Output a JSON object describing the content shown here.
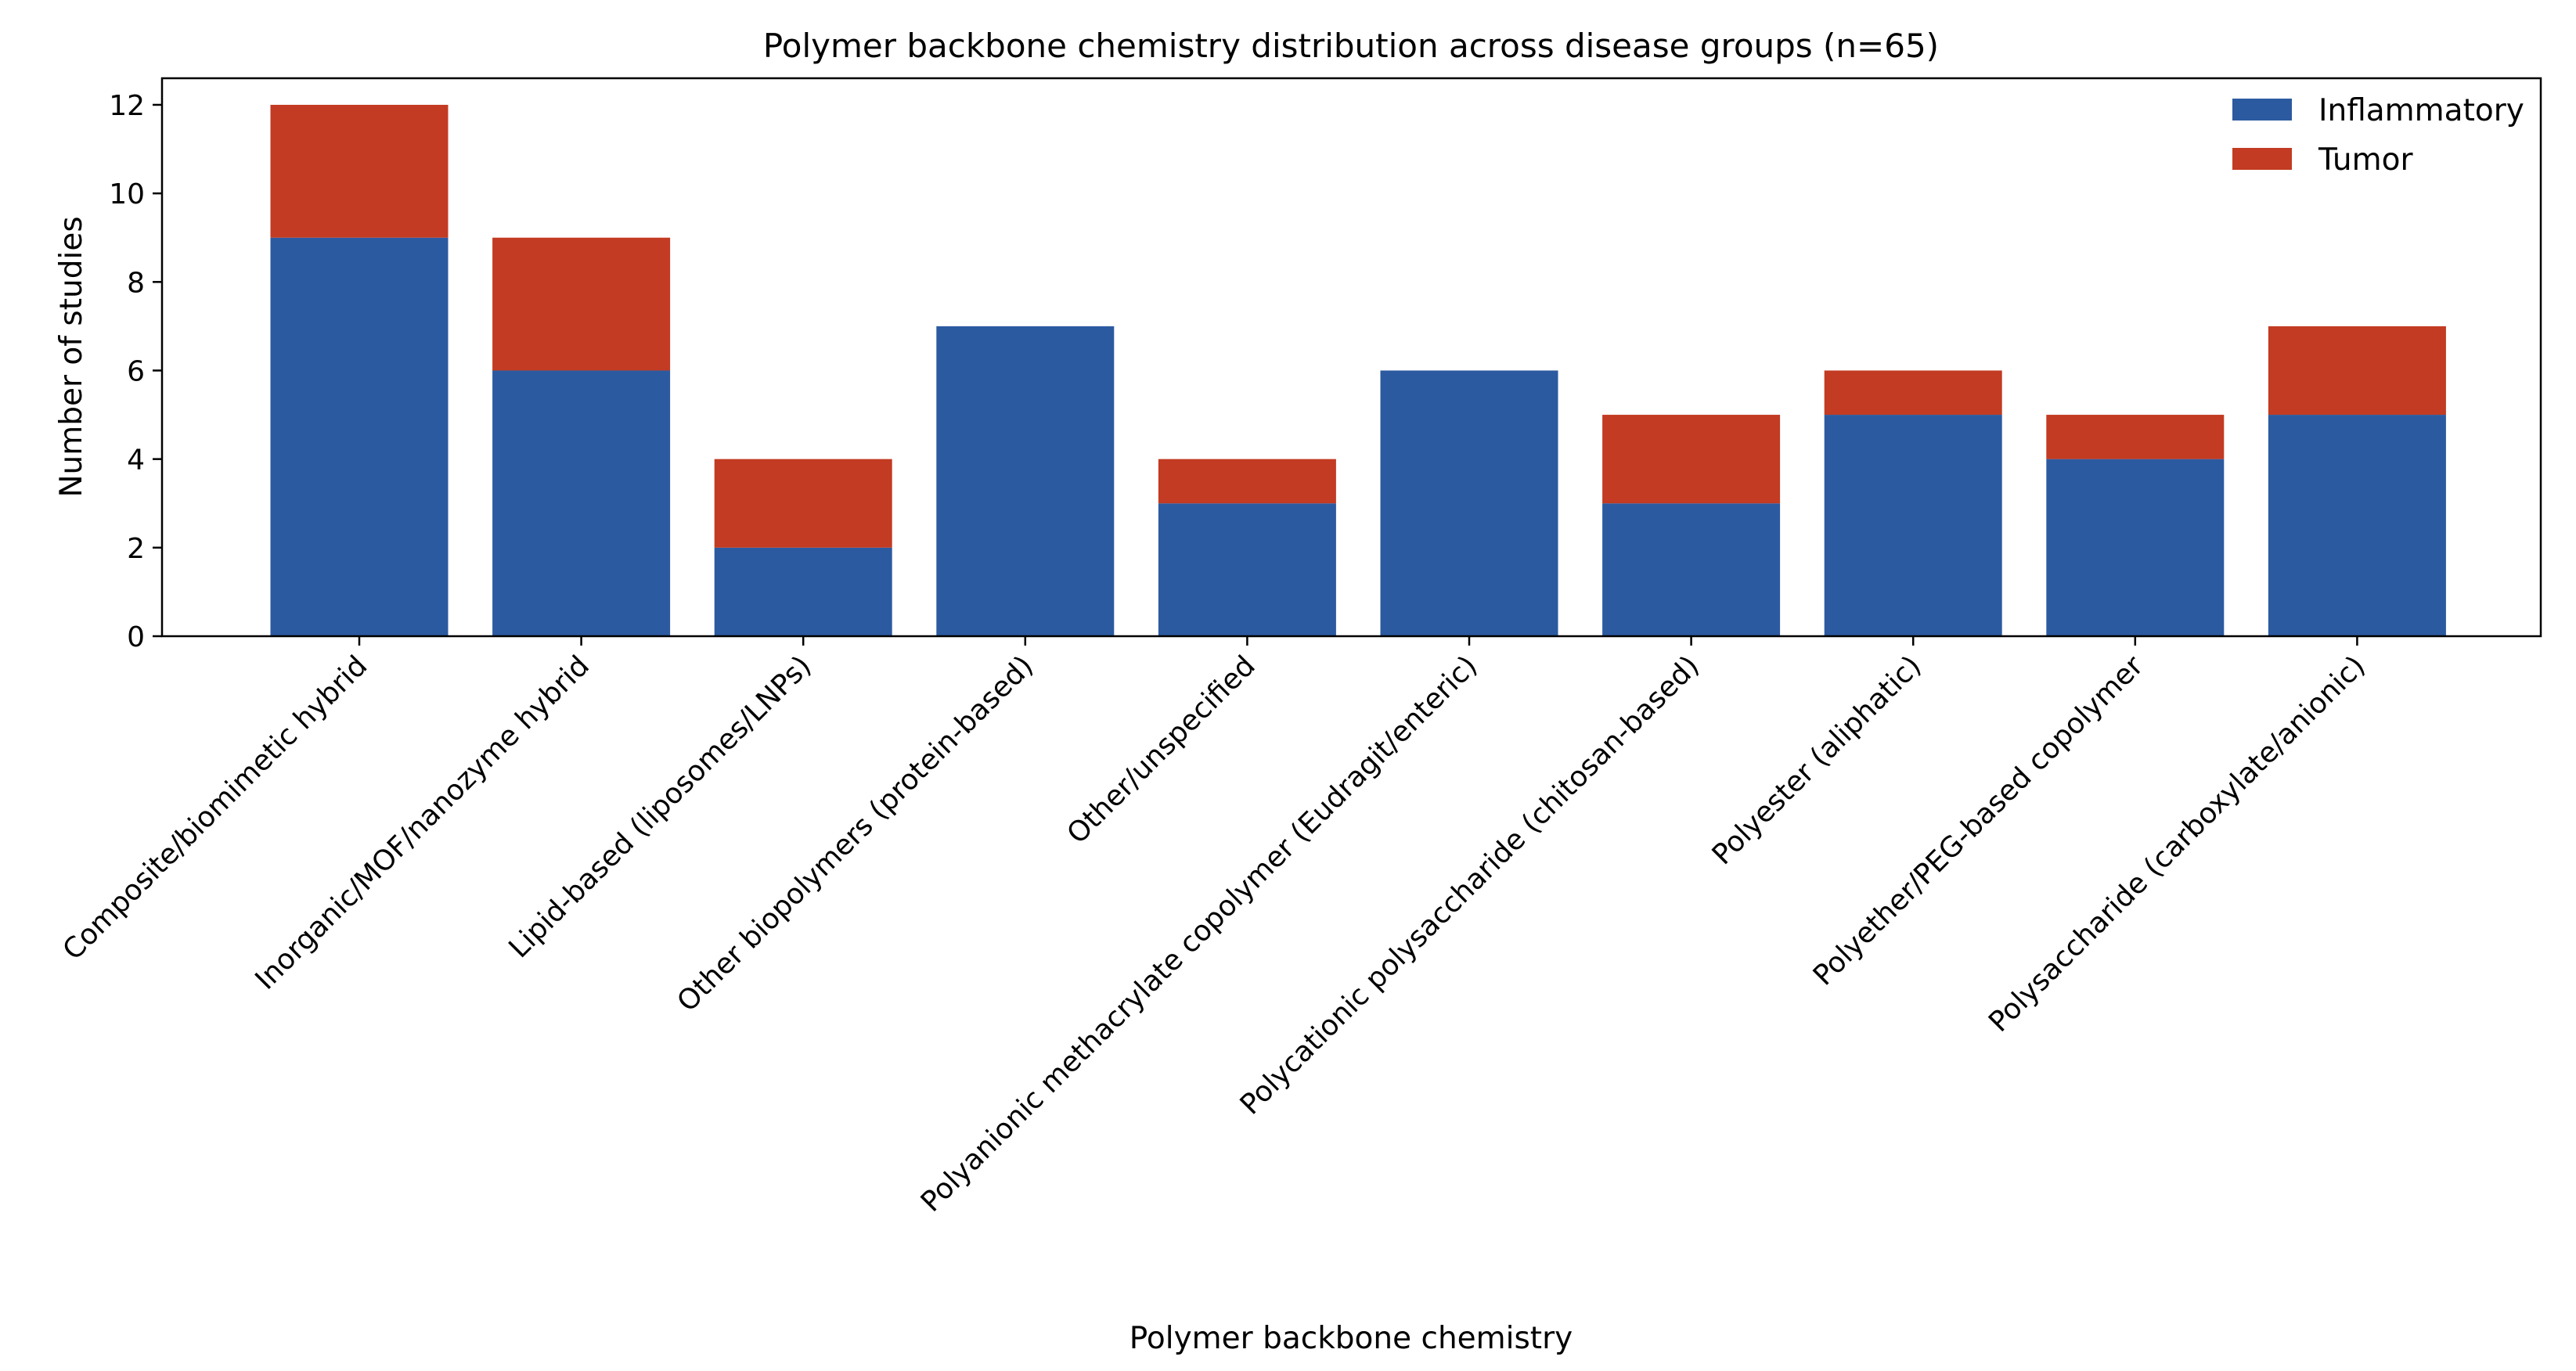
{
  "chart_data": {
    "type": "bar",
    "stacked": true,
    "title": "Polymer backbone chemistry distribution across disease groups (n=65)",
    "xlabel": "Polymer backbone chemistry",
    "ylabel": "Number of studies",
    "ylim": [
      0,
      12.6
    ],
    "yticks": [
      0,
      2,
      4,
      6,
      8,
      10,
      12
    ],
    "grid": false,
    "legend_position": "top-right",
    "categories": [
      "Composite/biomimetic hybrid",
      "Inorganic/MOF/nanozyme hybrid",
      "Lipid-based (liposomes/LNPs)",
      "Other biopolymers (protein-based)",
      "Other/unspecified",
      "Polyanionic methacrylate copolymer (Eudragit/enteric)",
      "Polycationic polysaccharide (chitosan-based)",
      "Polyester (aliphatic)",
      "Polyether/PEG-based copolymer",
      "Polysaccharide (carboxylate/anionic)"
    ],
    "series": [
      {
        "name": "Inflammatory",
        "color": "#2c5aa0",
        "values": [
          9,
          6,
          2,
          7,
          3,
          6,
          3,
          5,
          4,
          5
        ]
      },
      {
        "name": "Tumor",
        "color": "#c23b22",
        "values": [
          3,
          3,
          2,
          0,
          1,
          0,
          2,
          1,
          1,
          2
        ]
      }
    ]
  }
}
